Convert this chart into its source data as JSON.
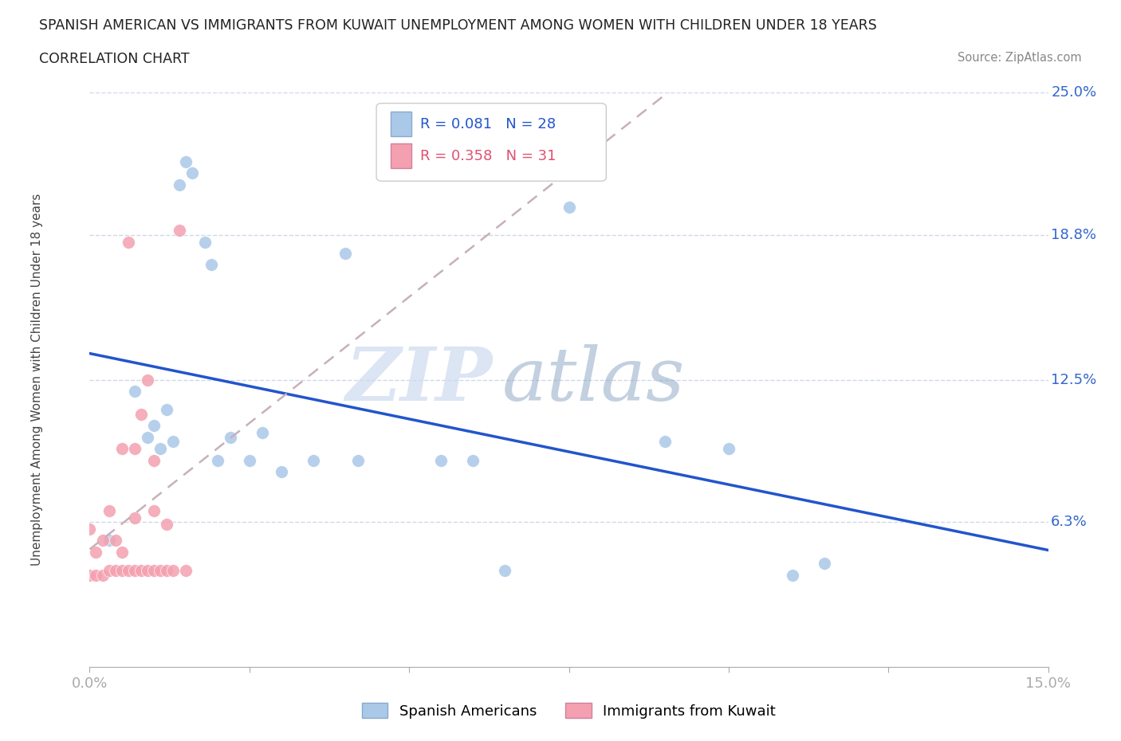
{
  "title_line1": "SPANISH AMERICAN VS IMMIGRANTS FROM KUWAIT UNEMPLOYMENT AMONG WOMEN WITH CHILDREN UNDER 18 YEARS",
  "title_line2": "CORRELATION CHART",
  "source_text": "Source: ZipAtlas.com",
  "ylabel": "Unemployment Among Women with Children Under 18 years",
  "xlim": [
    0.0,
    0.15
  ],
  "ylim": [
    0.0,
    0.25
  ],
  "xticks": [
    0.0,
    0.025,
    0.05,
    0.075,
    0.1,
    0.125,
    0.15
  ],
  "xticklabels": [
    "0.0%",
    "",
    "",
    "",
    "",
    "",
    "15.0%"
  ],
  "ytick_positions": [
    0.063,
    0.125,
    0.188,
    0.25
  ],
  "ytick_labels": [
    "6.3%",
    "12.5%",
    "18.8%",
    "25.0%"
  ],
  "series1_name": "Spanish Americans",
  "series1_color": "#aac8e8",
  "series1_R": 0.081,
  "series1_N": 28,
  "series1_x": [
    0.003,
    0.007,
    0.009,
    0.01,
    0.011,
    0.012,
    0.013,
    0.014,
    0.015,
    0.016,
    0.018,
    0.019,
    0.02,
    0.022,
    0.025,
    0.027,
    0.03,
    0.035,
    0.04,
    0.042,
    0.055,
    0.06,
    0.065,
    0.075,
    0.09,
    0.1,
    0.11,
    0.115
  ],
  "series1_y": [
    0.055,
    0.12,
    0.1,
    0.105,
    0.095,
    0.112,
    0.098,
    0.21,
    0.22,
    0.215,
    0.185,
    0.175,
    0.09,
    0.1,
    0.09,
    0.102,
    0.085,
    0.09,
    0.18,
    0.09,
    0.09,
    0.09,
    0.042,
    0.2,
    0.098,
    0.095,
    0.04,
    0.045
  ],
  "series2_name": "Immigrants from Kuwait",
  "series2_color": "#f4a0b0",
  "series2_R": 0.358,
  "series2_N": 31,
  "series2_x": [
    0.0,
    0.0,
    0.001,
    0.001,
    0.002,
    0.002,
    0.003,
    0.003,
    0.004,
    0.004,
    0.005,
    0.005,
    0.005,
    0.006,
    0.006,
    0.007,
    0.007,
    0.007,
    0.008,
    0.008,
    0.009,
    0.009,
    0.01,
    0.01,
    0.01,
    0.011,
    0.012,
    0.012,
    0.013,
    0.014,
    0.015
  ],
  "series2_y": [
    0.04,
    0.06,
    0.04,
    0.05,
    0.04,
    0.055,
    0.042,
    0.068,
    0.042,
    0.055,
    0.042,
    0.05,
    0.095,
    0.042,
    0.185,
    0.042,
    0.065,
    0.095,
    0.042,
    0.11,
    0.042,
    0.125,
    0.042,
    0.068,
    0.09,
    0.042,
    0.042,
    0.062,
    0.042,
    0.19,
    0.042
  ],
  "trend1_color": "#2255cc",
  "trend2_color": "#e08090",
  "watermark_zip": "ZIP",
  "watermark_atlas": "atlas",
  "legend_R1_color": "#2255cc",
  "legend_R2_color": "#e05070",
  "background_color": "#ffffff",
  "grid_color": "#d0d8e8"
}
